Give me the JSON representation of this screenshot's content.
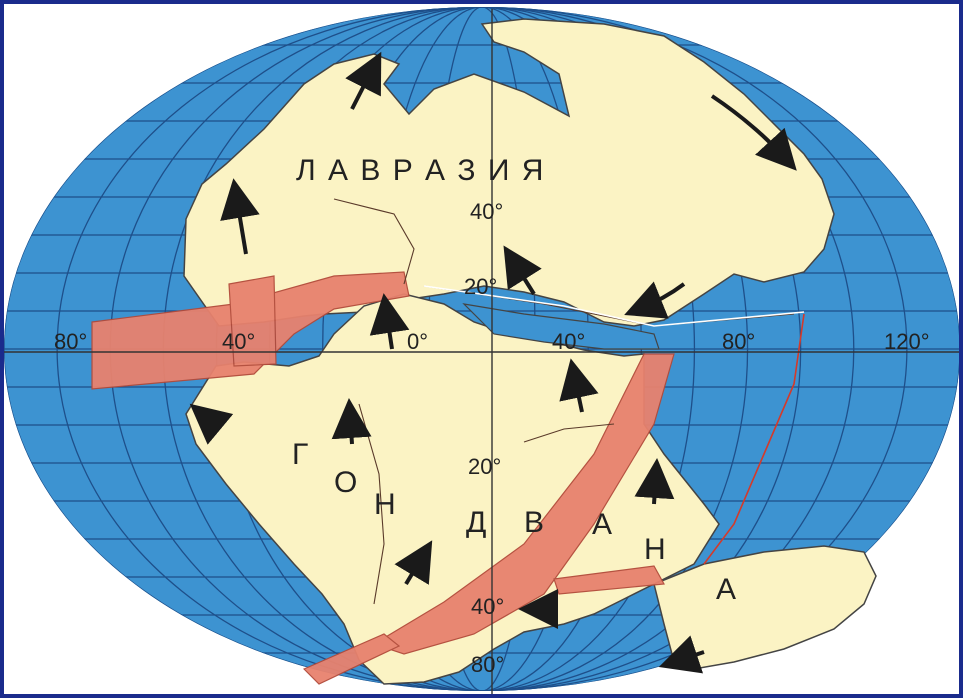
{
  "regions": {
    "laurasia": "Л А В Р А З И Я",
    "gondwana_letters": [
      "Г",
      "О",
      "Н",
      "Д",
      "В",
      "А",
      "Н",
      "А"
    ]
  },
  "degree_labels": {
    "lon_w80": "80°",
    "lon_w40": "40°",
    "lon_0": "0°",
    "lon_e40": "40°",
    "lon_e80": "80°",
    "lon_e120": "120°",
    "lat_n40": "40°",
    "lat_n20": "20°",
    "lat_s20": "20°",
    "lat_s40": "40°",
    "lat_s80": "80°"
  },
  "colors": {
    "ocean": "#3d93d1",
    "land": "#fbf3c4",
    "rift": "#e8826e",
    "frame": "#1a2b8c"
  },
  "icons": [
    "plate-motion-arrow-icon"
  ]
}
